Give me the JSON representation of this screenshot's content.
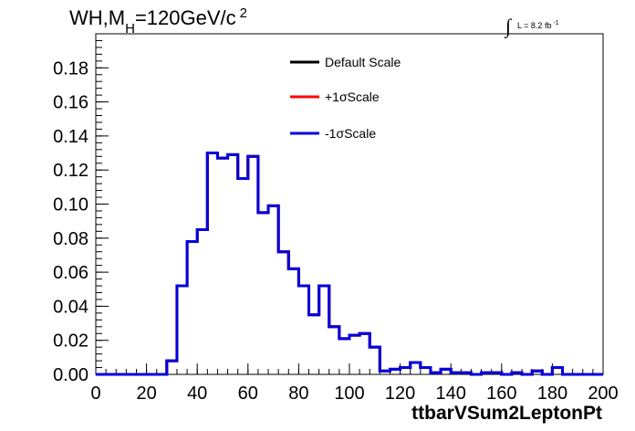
{
  "chart_data": {
    "type": "line",
    "title": {
      "main": "WH,M",
      "subscript": "H",
      "rest": "=120GeV/c",
      "superscript": "2"
    },
    "luminosity": {
      "integral_symbol": "∫",
      "text": "L = 8.2 fb",
      "superscript": "-1"
    },
    "xlabel": "ttbarVSum2LeptonPt",
    "xlim": [
      0,
      200
    ],
    "ylim": [
      0,
      0.2
    ],
    "xticks": [
      "0",
      "20",
      "40",
      "60",
      "80",
      "100",
      "120",
      "140",
      "160",
      "180",
      "200"
    ],
    "xtick_values": [
      0,
      20,
      40,
      60,
      80,
      100,
      120,
      140,
      160,
      180,
      200
    ],
    "yticks": [
      "0.00",
      "0.02",
      "0.04",
      "0.06",
      "0.08",
      "0.10",
      "0.12",
      "0.14",
      "0.16",
      "0.18"
    ],
    "ytick_values": [
      0,
      0.02,
      0.04,
      0.06,
      0.08,
      0.1,
      0.12,
      0.14,
      0.16,
      0.18
    ],
    "bin_edges": [
      0,
      4,
      8,
      12,
      16,
      20,
      24,
      28,
      32,
      36,
      40,
      44,
      48,
      52,
      56,
      60,
      64,
      68,
      72,
      76,
      80,
      84,
      88,
      92,
      96,
      100,
      104,
      108,
      112,
      116,
      120,
      124,
      128,
      132,
      136,
      140,
      144,
      148,
      152,
      156,
      160,
      164,
      168,
      172,
      176,
      180,
      184,
      188,
      192,
      196,
      200
    ],
    "series": [
      {
        "name": "Default Scale",
        "color": "#000000",
        "values": [
          0,
          0,
          0,
          0,
          0,
          0,
          0,
          0.008,
          0.052,
          0.078,
          0.085,
          0.13,
          0.127,
          0.129,
          0.115,
          0.128,
          0.095,
          0.099,
          0.072,
          0.062,
          0.052,
          0.035,
          0.052,
          0.028,
          0.021,
          0.023,
          0.024,
          0.016,
          0.002,
          0.003,
          0.004,
          0.007,
          0.004,
          0.001,
          0.003,
          0.001,
          0.001,
          0.0,
          0.001,
          0.001,
          0.0,
          0.001,
          0.0,
          0.002,
          0.0,
          0.004,
          0.0,
          0.0,
          0.0,
          0.0
        ]
      },
      {
        "name": "+1σScale",
        "color": "#ff0000",
        "values": [
          0,
          0,
          0,
          0,
          0,
          0,
          0,
          0.008,
          0.052,
          0.078,
          0.085,
          0.13,
          0.127,
          0.129,
          0.115,
          0.128,
          0.095,
          0.099,
          0.072,
          0.062,
          0.052,
          0.035,
          0.052,
          0.028,
          0.021,
          0.023,
          0.024,
          0.016,
          0.002,
          0.003,
          0.004,
          0.007,
          0.004,
          0.001,
          0.003,
          0.001,
          0.001,
          0.0,
          0.001,
          0.001,
          0.0,
          0.001,
          0.0,
          0.002,
          0.0,
          0.004,
          0.0,
          0.0,
          0.0,
          0.0
        ]
      },
      {
        "name": "-1σScale",
        "color": "#0000dd",
        "values": [
          0,
          0,
          0,
          0,
          0,
          0,
          0,
          0.008,
          0.052,
          0.078,
          0.085,
          0.13,
          0.127,
          0.129,
          0.115,
          0.128,
          0.095,
          0.099,
          0.072,
          0.062,
          0.052,
          0.035,
          0.052,
          0.028,
          0.021,
          0.023,
          0.024,
          0.016,
          0.002,
          0.003,
          0.004,
          0.007,
          0.004,
          0.001,
          0.003,
          0.001,
          0.001,
          0.0,
          0.001,
          0.001,
          0.0,
          0.001,
          0.0,
          0.002,
          0.0,
          0.004,
          0.0,
          0.0,
          0.0,
          0.0
        ]
      }
    ],
    "legend_position": "top-center",
    "grid": false
  }
}
